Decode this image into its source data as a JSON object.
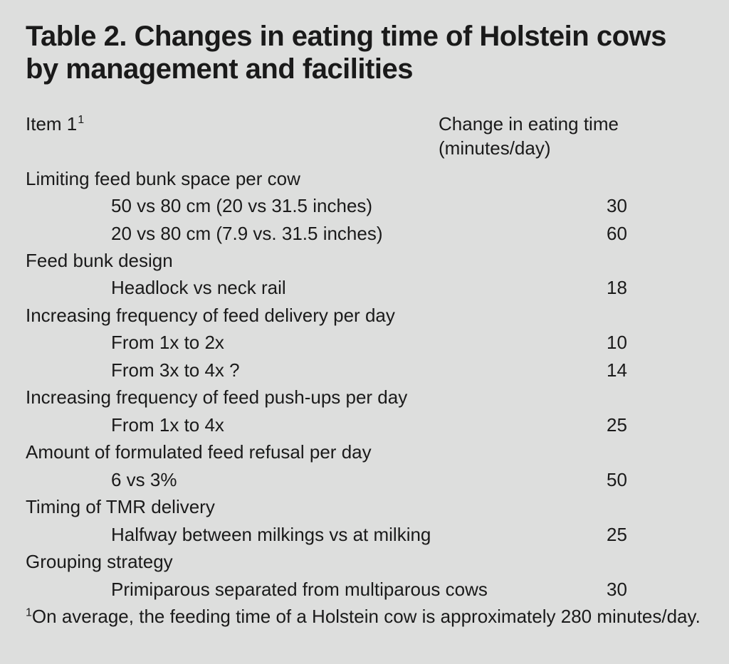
{
  "title": "Table 2. Changes in eating time of Holstein cows by management and facilities",
  "background_color": "#dddedd",
  "text_color": "#1a1a1a",
  "title_fontsize": 40,
  "body_fontsize": 26,
  "headers": {
    "col1": "Item 1",
    "col1_super": "1",
    "col2": "Change in eating time (minutes/day)"
  },
  "groups": [
    {
      "label": "Limiting feed bunk space per cow",
      "rows": [
        {
          "label": "50 vs 80 cm (20 vs 31.5 inches)",
          "value": "30"
        },
        {
          "label": "20 vs 80 cm (7.9 vs. 31.5 inches)",
          "value": "60"
        }
      ]
    },
    {
      "label": "Feed bunk design",
      "rows": [
        {
          "label": "Headlock vs neck rail",
          "value": "18"
        }
      ]
    },
    {
      "label": "Increasing frequency of feed delivery per day",
      "rows": [
        {
          "label": "From 1x to 2x",
          "value": "10"
        },
        {
          "label": "From 3x to 4x ?",
          "value": "14"
        }
      ]
    },
    {
      "label": "Increasing frequency of feed push-ups per day",
      "rows": [
        {
          "label": "From 1x to 4x",
          "value": " 25"
        }
      ]
    },
    {
      "label": "Amount of formulated feed refusal per day",
      "rows": [
        {
          "label": " 6 vs 3%",
          "value": "50"
        }
      ]
    },
    {
      "label": "Timing of TMR delivery",
      "rows": [
        {
          "label": "Halfway between milkings vs at milking",
          "value": "25"
        }
      ]
    },
    {
      "label": "Grouping strategy",
      "rows": [
        {
          "label": "Primiparous separated from multiparous cows",
          "value": "30"
        }
      ]
    }
  ],
  "footnote": {
    "super": "1",
    "text": "On average, the feeding time of a Holstein cow is approximately 280 minutes/day."
  }
}
